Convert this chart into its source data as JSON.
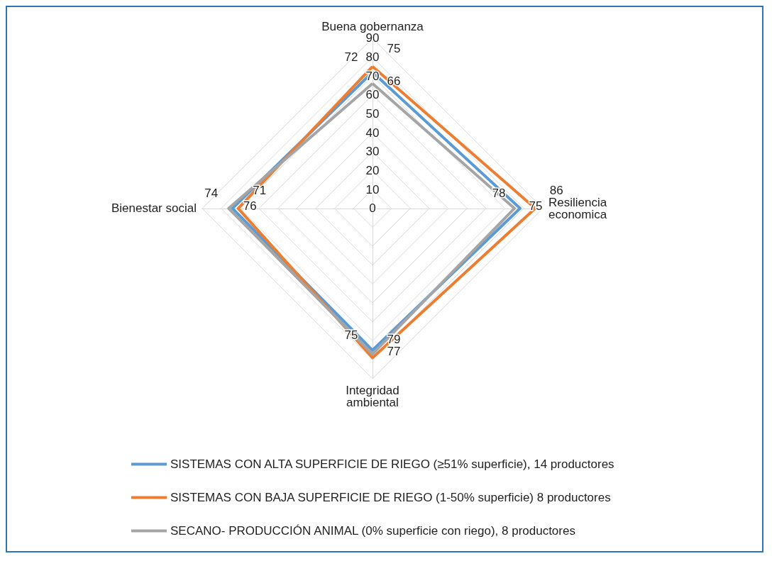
{
  "chart_data": {
    "type": "radar",
    "categories": [
      "Buena gobernanza",
      "Resiliencia economica",
      "Integridad ambiental",
      "Bienestar social"
    ],
    "series": [
      {
        "name": "SISTEMAS CON ALTA SUPERFICIE DE RIEGO (≥51% superficie), 14 productores",
        "color": "#5b9bd5",
        "values": [
          72,
          78,
          75,
          74
        ]
      },
      {
        "name": "SISTEMAS CON BAJA SUPERFICIE DE RIEGO (1-50% superficie) 8 productores",
        "color": "#ed7d31",
        "values": [
          75,
          86,
          79,
          71
        ]
      },
      {
        "name": "SECANO- PRODUCCIÓN ANIMAL (0% superficie con riego), 8 productores",
        "color": "#a5a5a5",
        "values": [
          66,
          75,
          77,
          76
        ]
      }
    ],
    "ylim": [
      0,
      90
    ],
    "yticks": [
      0,
      10,
      20,
      30,
      40,
      50,
      60,
      70,
      80,
      90
    ],
    "grid": true,
    "legend": "bottom",
    "data_labels": true,
    "marker": "none",
    "line_style": "solid"
  }
}
